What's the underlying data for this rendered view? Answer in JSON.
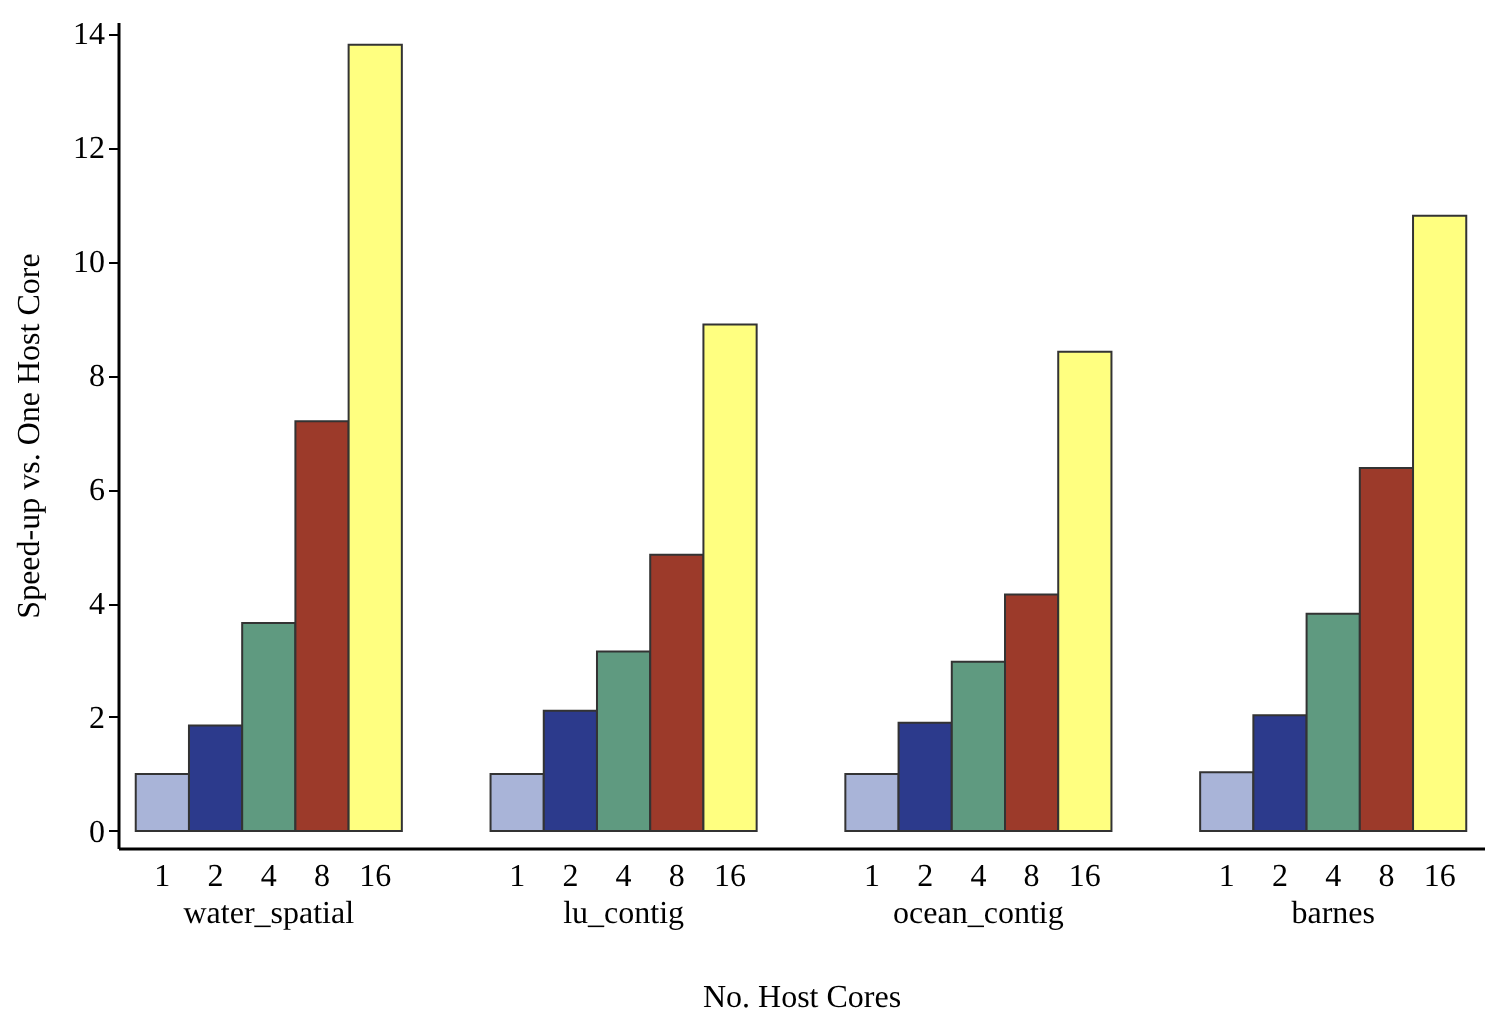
{
  "chart_data": {
    "type": "bar",
    "xlabel": "No. Host Cores",
    "ylabel": "Speed-up vs. One Host Core",
    "categories": [
      "water_spatial",
      "lu_contig",
      "ocean_contig",
      "barnes"
    ],
    "series": [
      {
        "name": "1",
        "color": "#a9b4d8",
        "values": [
          1.0,
          1.0,
          1.0,
          1.03
        ]
      },
      {
        "name": "2",
        "color": "#2c3a8c",
        "values": [
          1.85,
          2.11,
          1.9,
          2.03
        ]
      },
      {
        "name": "4",
        "color": "#5f9a80",
        "values": [
          3.65,
          3.15,
          2.97,
          3.81
        ]
      },
      {
        "name": "8",
        "color": "#9c3a2a",
        "values": [
          7.19,
          4.85,
          4.15,
          6.37
        ]
      },
      {
        "name": "16",
        "color": "#ffff80",
        "values": [
          13.8,
          8.89,
          8.41,
          10.8
        ]
      }
    ],
    "ylim": [
      -0.3,
      14.2
    ],
    "yticks": [
      0,
      2,
      4,
      6,
      8,
      10,
      12,
      14
    ],
    "grid": false,
    "legend": false
  }
}
